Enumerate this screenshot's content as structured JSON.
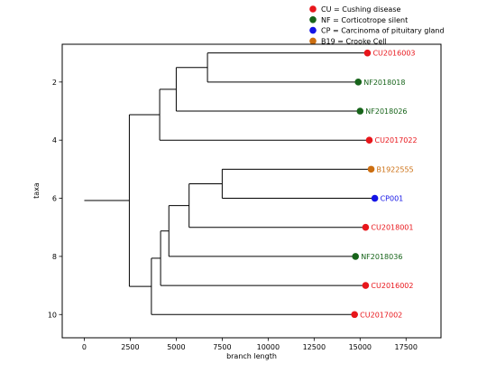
{
  "chart_data": {
    "type": "dendrogram",
    "title": "",
    "xlabel": "branch length",
    "ylabel": "taxa",
    "xlim": [
      -1200,
      19400
    ],
    "ylim": [
      10.8,
      0.7
    ],
    "xticks": [
      0,
      2500,
      5000,
      7500,
      10000,
      12500,
      15000,
      17500
    ],
    "yticks": [
      2,
      4,
      6,
      8,
      10
    ],
    "grid": false,
    "legend": {
      "placement": "top-right-outside",
      "entries": [
        {
          "label": "CU = Cushing disease",
          "color": "#e8161b"
        },
        {
          "label": "NF = Corticotrope silent",
          "color": "#17641a"
        },
        {
          "label": "CP = Carcinoma of pituitary gland",
          "color": "#1414e6"
        },
        {
          "label": "B19 = Crooke Cell",
          "color": "#cc6e10"
        }
      ]
    },
    "leaves": [
      {
        "name": "CU2016003",
        "y": 1,
        "x": 15400,
        "color": "#e8161b"
      },
      {
        "name": "NF2018018",
        "y": 2,
        "x": 14900,
        "color": "#17641a"
      },
      {
        "name": "NF2018026",
        "y": 3,
        "x": 15000,
        "color": "#17641a"
      },
      {
        "name": "CU2017022",
        "y": 4,
        "x": 15500,
        "color": "#e8161b"
      },
      {
        "name": "B1922555",
        "y": 5,
        "x": 15600,
        "color": "#cc6e10"
      },
      {
        "name": "CP001",
        "y": 6,
        "x": 15800,
        "color": "#1414e6"
      },
      {
        "name": "CU2018001",
        "y": 7,
        "x": 15300,
        "color": "#e8161b"
      },
      {
        "name": "NF2018036",
        "y": 8,
        "x": 14750,
        "color": "#17641a"
      },
      {
        "name": "CU2016002",
        "y": 9,
        "x": 15300,
        "color": "#e8161b"
      },
      {
        "name": "CU2017002",
        "y": 10,
        "x": 14700,
        "color": "#e8161b"
      }
    ],
    "internal_nodes": [
      {
        "id": "root",
        "x": 2450
      },
      {
        "id": "n1",
        "x": 4100
      },
      {
        "id": "n2",
        "x": 5000
      },
      {
        "id": "n3",
        "x": 6700
      },
      {
        "id": "n4",
        "x": 3650
      },
      {
        "id": "n5",
        "x": 4150
      },
      {
        "id": "n6",
        "x": 4600
      },
      {
        "id": "n7",
        "x": 5700
      },
      {
        "id": "n8",
        "x": 7500
      }
    ],
    "root_stem_start_x": 0,
    "tree": {
      "id": "root",
      "children": [
        {
          "id": "n1",
          "children": [
            {
              "id": "n2",
              "children": [
                {
                  "id": "n3",
                  "children": [
                    {
                      "leaf": 0
                    },
                    {
                      "leaf": 1
                    }
                  ]
                },
                {
                  "leaf": 2
                }
              ]
            },
            {
              "leaf": 3
            }
          ]
        },
        {
          "id": "n4",
          "children": [
            {
              "id": "n5",
              "children": [
                {
                  "id": "n6",
                  "children": [
                    {
                      "id": "n7",
                      "children": [
                        {
                          "id": "n8",
                          "children": [
                            {
                              "leaf": 4
                            },
                            {
                              "leaf": 5
                            }
                          ]
                        },
                        {
                          "leaf": 6
                        }
                      ]
                    },
                    {
                      "leaf": 7
                    }
                  ]
                },
                {
                  "leaf": 8
                }
              ]
            },
            {
              "leaf": 9
            }
          ]
        }
      ]
    }
  }
}
